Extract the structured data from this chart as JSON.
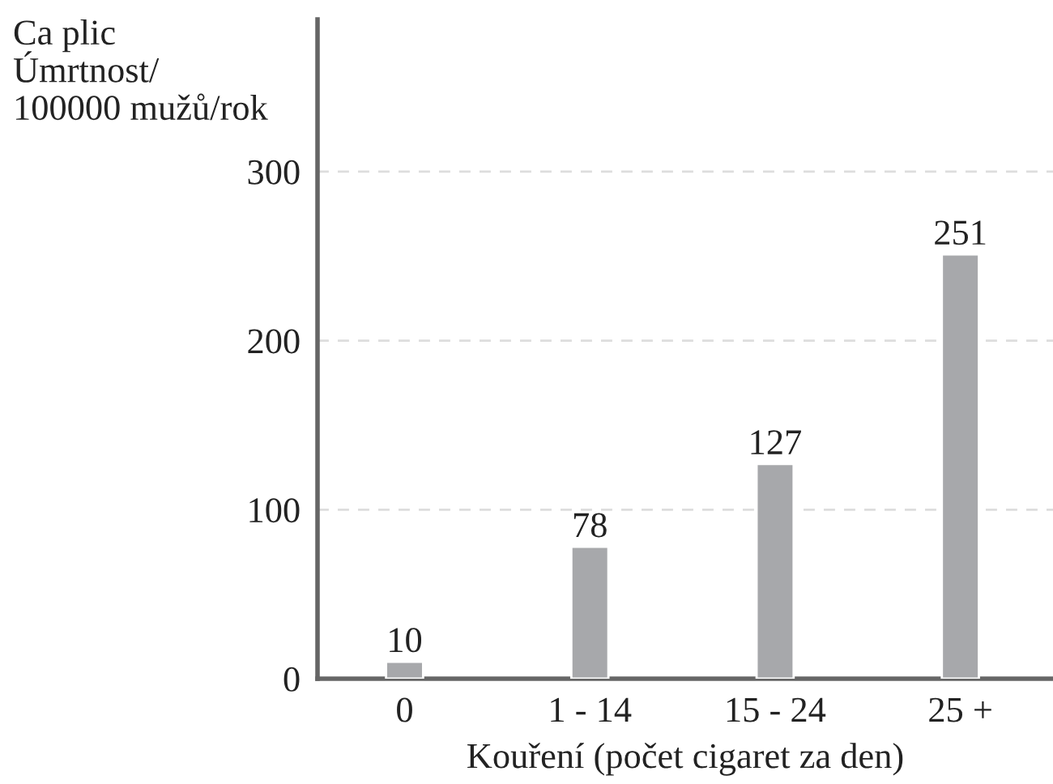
{
  "chart_data": {
    "type": "bar",
    "ylabel": "Ca plic\nÚmrtnost/\n100000 mužů/rok",
    "xlabel": "Kouření (počet cigaret za den)",
    "categories": [
      "0",
      "1 - 14",
      "15 - 24",
      "25 +"
    ],
    "values": [
      10,
      78,
      127,
      251
    ],
    "color": "#a7a8ab",
    "ylim": [
      0,
      390
    ],
    "yticks": [
      0,
      100,
      200,
      300
    ],
    "grid": "y",
    "data_labels": true
  }
}
